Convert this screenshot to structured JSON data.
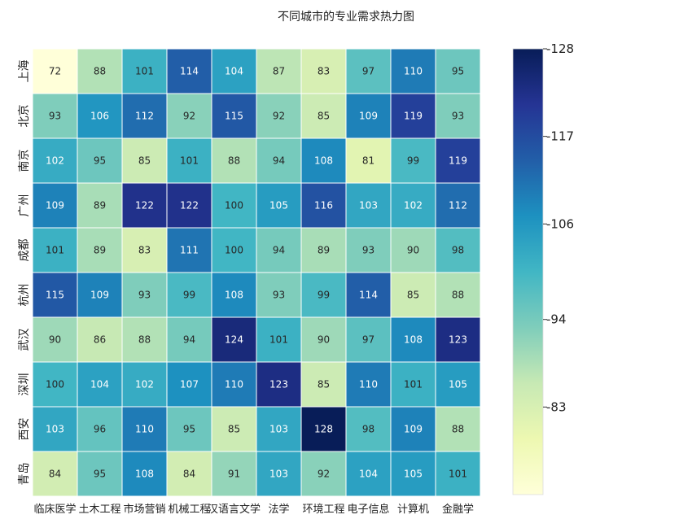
{
  "chart_data": {
    "type": "heatmap",
    "title": "不同城市的专业需求热力图",
    "rows": [
      "上海",
      "北京",
      "南京",
      "广州",
      "成都",
      "杭州",
      "武汉",
      "深圳",
      "西安",
      "青岛"
    ],
    "columns": [
      "临床医学",
      "土木工程",
      "市场营销",
      "机械工程",
      "汉语言文学",
      "法学",
      "环境工程",
      "电子信息",
      "计算机",
      "金融学"
    ],
    "values": [
      [
        72,
        88,
        101,
        114,
        104,
        87,
        83,
        97,
        110,
        95
      ],
      [
        93,
        106,
        112,
        92,
        115,
        92,
        85,
        109,
        119,
        93
      ],
      [
        102,
        95,
        85,
        101,
        88,
        94,
        108,
        81,
        99,
        119
      ],
      [
        109,
        89,
        122,
        122,
        100,
        105,
        116,
        103,
        102,
        112
      ],
      [
        101,
        89,
        83,
        111,
        100,
        94,
        89,
        93,
        90,
        98
      ],
      [
        115,
        109,
        93,
        99,
        108,
        93,
        99,
        114,
        85,
        88
      ],
      [
        90,
        86,
        88,
        94,
        124,
        101,
        90,
        97,
        108,
        123
      ],
      [
        100,
        104,
        102,
        107,
        110,
        123,
        85,
        110,
        101,
        105
      ],
      [
        103,
        96,
        110,
        95,
        85,
        103,
        128,
        98,
        109,
        88
      ],
      [
        84,
        95,
        108,
        84,
        91,
        103,
        92,
        104,
        105,
        101
      ]
    ],
    "colormap": "YlGnBu",
    "vmin": 72,
    "vmax": 128,
    "colorbar_ticks": [
      128,
      117,
      106,
      94,
      83
    ],
    "colorbar_tick_labels": [
      "-128",
      "-117",
      "-106",
      "-94",
      "-83"
    ],
    "annotations": true,
    "cell_border_color": "#ffffff"
  }
}
